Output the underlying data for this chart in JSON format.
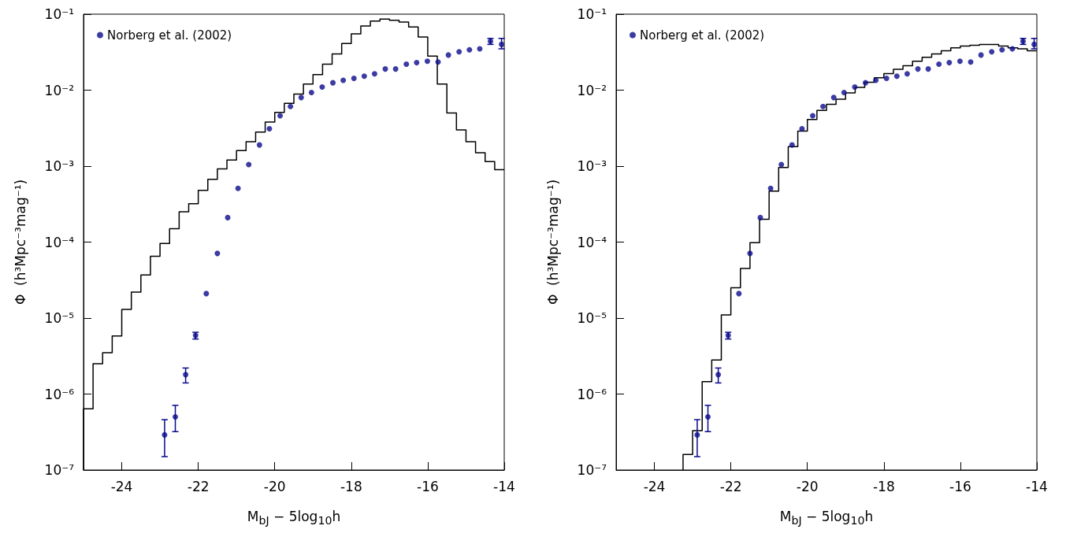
{
  "chart_data": [
    {
      "type": "histogram",
      "xlabel": "M$_{bJ}$ − 5log$_{10}$h",
      "ylabel": "Φ  (h³Mpc⁻³mag⁻¹)",
      "xlim": [
        -25,
        -14
      ],
      "xticks": [
        -24,
        -22,
        -20,
        -18,
        -16,
        -14
      ],
      "ylim": [
        1e-07,
        0.1
      ],
      "yticks": [
        {
          "value": 1e-07,
          "label": "10⁻⁷"
        },
        {
          "value": 1e-06,
          "label": "10⁻⁶"
        },
        {
          "value": 1e-05,
          "label": "10⁻⁵"
        },
        {
          "value": 0.0001,
          "label": "10⁻⁴"
        },
        {
          "value": 0.001,
          "label": "10⁻³"
        },
        {
          "value": 0.01,
          "label": "10⁻²"
        },
        {
          "value": 0.1,
          "label": "10⁻¹"
        }
      ],
      "log": "y",
      "legend": "top left",
      "marker": "circle",
      "bins": [
        -25,
        -24.75,
        -24.5,
        -24.25,
        -24,
        -23.75,
        -23.5,
        -23.25,
        -23,
        -22.75,
        -22.5,
        -22.25,
        -22,
        -21.75,
        -21.5,
        -21.25,
        -21,
        -20.75,
        -20.5,
        -20.25,
        -20,
        -19.75,
        -19.5,
        -19.25,
        -19,
        -18.75,
        -18.5,
        -18.25,
        -18,
        -17.75,
        -17.5,
        -17.25,
        -17,
        -16.75,
        -16.5,
        -16.25,
        -16,
        -15.75,
        -15.5,
        -15.25,
        -15,
        -14.75,
        -14.5,
        -14.25,
        -14
      ],
      "series": [
        {
          "type": "histogram",
          "color": "#000000",
          "values": [
            6.4e-07,
            2.5e-06,
            3.5e-06,
            5.8e-06,
            1.3e-05,
            2.2e-05,
            3.7e-05,
            6.5e-05,
            9.6e-05,
            0.00015,
            0.00025,
            0.00032,
            0.00048,
            0.00067,
            0.00092,
            0.0012,
            0.0016,
            0.0021,
            0.0028,
            0.0038,
            0.0051,
            0.0067,
            0.0089,
            0.012,
            0.016,
            0.022,
            0.03,
            0.041,
            0.055,
            0.07,
            0.081,
            0.086,
            0.083,
            0.079,
            0.068,
            0.05,
            0.028,
            0.012,
            0.005,
            0.003,
            0.0021,
            0.0015,
            0.00115,
            0.0009
          ]
        },
        {
          "type": "scatter",
          "name": "Norberg et al. (2002)",
          "color": "#0a0a8c",
          "x": [
            -22.88,
            -22.6,
            -22.33,
            -22.07,
            -21.79,
            -21.5,
            -21.23,
            -20.96,
            -20.68,
            -20.4,
            -20.14,
            -19.86,
            -19.59,
            -19.31,
            -19.04,
            -18.76,
            -18.48,
            -18.21,
            -17.93,
            -17.66,
            -17.39,
            -17.11,
            -16.84,
            -16.56,
            -16.29,
            -16.01,
            -15.73,
            -15.46,
            -15.18,
            -14.91,
            -14.64,
            -14.36,
            -14.07
          ],
          "values": [
            2.9e-07,
            5e-07,
            1.8e-06,
            5.9e-06,
            2.1e-05,
            7.1e-05,
            0.00021,
            0.00051,
            0.00105,
            0.0019,
            0.0031,
            0.0046,
            0.0061,
            0.008,
            0.0093,
            0.011,
            0.0125,
            0.0135,
            0.0143,
            0.0153,
            0.0164,
            0.019,
            0.019,
            0.022,
            0.023,
            0.024,
            0.0235,
            0.029,
            0.032,
            0.034,
            0.035,
            0.044,
            0.04
          ],
          "errors": [
            [
              1.5e-07,
              4.6e-07
            ],
            [
              3.2e-07,
              7.1e-07
            ],
            [
              1.4e-06,
              2.2e-06
            ],
            [
              5.3e-06,
              6.5e-06
            ],
            null,
            null,
            null,
            null,
            null,
            null,
            null,
            null,
            null,
            null,
            null,
            null,
            null,
            null,
            null,
            null,
            null,
            null,
            null,
            null,
            null,
            null,
            null,
            null,
            null,
            null,
            null,
            [
              0.04,
              0.048
            ],
            [
              0.035,
              0.048
            ]
          ]
        }
      ]
    },
    {
      "type": "histogram",
      "xlabel": "M$_{bJ}$ − 5log$_{10}$h",
      "ylabel": "Φ  (h³Mpc⁻³mag⁻¹)",
      "xlim": [
        -25,
        -14
      ],
      "xticks": [
        -24,
        -22,
        -20,
        -18,
        -16,
        -14
      ],
      "ylim": [
        1e-07,
        0.1
      ],
      "yticks": [
        {
          "value": 1e-07,
          "label": "10⁻⁷"
        },
        {
          "value": 1e-06,
          "label": "10⁻⁶"
        },
        {
          "value": 1e-05,
          "label": "10⁻⁵"
        },
        {
          "value": 0.0001,
          "label": "10⁻⁴"
        },
        {
          "value": 0.001,
          "label": "10⁻³"
        },
        {
          "value": 0.01,
          "label": "10⁻²"
        },
        {
          "value": 0.1,
          "label": "10⁻¹"
        }
      ],
      "log": "y",
      "legend": "top left",
      "marker": "circle",
      "bins": [
        -23.25,
        -23,
        -22.75,
        -22.5,
        -22.25,
        -22,
        -21.75,
        -21.5,
        -21.25,
        -21,
        -20.75,
        -20.5,
        -20.25,
        -20,
        -19.75,
        -19.5,
        -19.25,
        -19,
        -18.75,
        -18.5,
        -18.25,
        -18,
        -17.75,
        -17.5,
        -17.25,
        -17,
        -16.75,
        -16.5,
        -16.25,
        -16,
        -15.75,
        -15.5,
        -15.25,
        -15,
        -14.75,
        -14.5,
        -14.25,
        -14
      ],
      "series": [
        {
          "type": "histogram",
          "color": "#000000",
          "values": [
            1.6e-07,
            3.3e-07,
            1.46e-06,
            2.8e-06,
            1.1e-05,
            2.5e-05,
            4.5e-05,
            9.8e-05,
            0.0002,
            0.00047,
            0.00096,
            0.0018,
            0.0029,
            0.0041,
            0.0054,
            0.0065,
            0.0076,
            0.0092,
            0.0109,
            0.0127,
            0.0146,
            0.0165,
            0.0188,
            0.021,
            0.024,
            0.027,
            0.03,
            0.033,
            0.036,
            0.038,
            0.039,
            0.04,
            0.04,
            0.038,
            0.036,
            0.035,
            0.033
          ]
        },
        {
          "type": "scatter",
          "name": "Norberg et al. (2002)",
          "color": "#0a0a8c",
          "x": [
            -22.88,
            -22.6,
            -22.33,
            -22.07,
            -21.79,
            -21.5,
            -21.23,
            -20.96,
            -20.68,
            -20.4,
            -20.14,
            -19.86,
            -19.59,
            -19.31,
            -19.04,
            -18.76,
            -18.48,
            -18.21,
            -17.93,
            -17.66,
            -17.39,
            -17.11,
            -16.84,
            -16.56,
            -16.29,
            -16.01,
            -15.73,
            -15.46,
            -15.18,
            -14.91,
            -14.64,
            -14.36,
            -14.07
          ],
          "values": [
            2.9e-07,
            5e-07,
            1.8e-06,
            5.9e-06,
            2.1e-05,
            7.1e-05,
            0.00021,
            0.00051,
            0.00105,
            0.0019,
            0.0031,
            0.0046,
            0.0061,
            0.008,
            0.0093,
            0.011,
            0.0125,
            0.0135,
            0.0143,
            0.0153,
            0.0164,
            0.019,
            0.019,
            0.022,
            0.023,
            0.024,
            0.0235,
            0.029,
            0.032,
            0.034,
            0.035,
            0.044,
            0.04
          ],
          "errors": [
            [
              1.5e-07,
              4.6e-07
            ],
            [
              3.2e-07,
              7.1e-07
            ],
            [
              1.4e-06,
              2.2e-06
            ],
            [
              5.3e-06,
              6.5e-06
            ],
            null,
            null,
            null,
            null,
            null,
            null,
            null,
            null,
            null,
            null,
            null,
            null,
            null,
            null,
            null,
            null,
            null,
            null,
            null,
            null,
            null,
            null,
            null,
            null,
            null,
            null,
            null,
            [
              0.04,
              0.048
            ],
            [
              0.035,
              0.048
            ]
          ]
        }
      ]
    }
  ]
}
